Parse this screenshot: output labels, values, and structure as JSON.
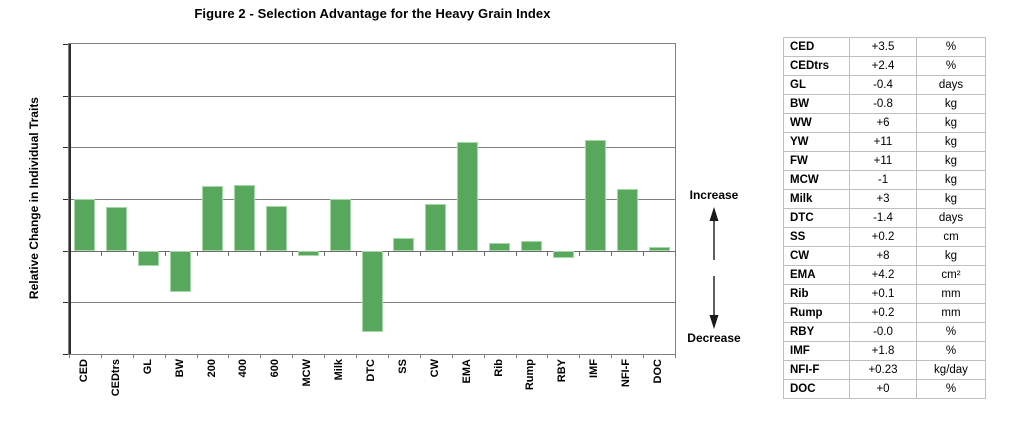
{
  "chart_data": {
    "type": "bar",
    "title": "Figure 2 - Selection Advantage for the Heavy Grain Index",
    "ylabel": "Relative Change in Individual Traits",
    "xlabel": "",
    "categories": [
      "CED",
      "CEDtrs",
      "GL",
      "BW",
      "200",
      "400",
      "600",
      "MCW",
      "Milk",
      "DTC",
      "SS",
      "CW",
      "EMA",
      "Rib",
      "Rump",
      "RBY",
      "IMF",
      "NFI-F",
      "DOC"
    ],
    "values": [
      1.0,
      0.85,
      -0.3,
      -0.8,
      1.25,
      1.28,
      0.87,
      -0.1,
      1.0,
      -1.58,
      0.24,
      0.9,
      2.1,
      0.14,
      0.18,
      -0.15,
      2.15,
      1.2,
      0.07
    ],
    "ylim": [
      -2,
      4
    ],
    "gridline_step": 1,
    "grid": true,
    "legend": "none",
    "y_tick_labels_shown": false
  },
  "annotation": {
    "increase_label": "Increase",
    "decrease_label": "Decrease"
  },
  "table": {
    "rows": [
      {
        "trait": "CED",
        "value": "+3.5",
        "unit": "%"
      },
      {
        "trait": "CEDtrs",
        "value": "+2.4",
        "unit": "%"
      },
      {
        "trait": "GL",
        "value": "-0.4",
        "unit": "days"
      },
      {
        "trait": "BW",
        "value": "-0.8",
        "unit": "kg"
      },
      {
        "trait": "WW",
        "value": "+6",
        "unit": "kg"
      },
      {
        "trait": "YW",
        "value": "+11",
        "unit": "kg"
      },
      {
        "trait": "FW",
        "value": "+11",
        "unit": "kg"
      },
      {
        "trait": "MCW",
        "value": "-1",
        "unit": "kg"
      },
      {
        "trait": "Milk",
        "value": "+3",
        "unit": "kg"
      },
      {
        "trait": "DTC",
        "value": "-1.4",
        "unit": "days"
      },
      {
        "trait": "SS",
        "value": "+0.2",
        "unit": "cm"
      },
      {
        "trait": "CW",
        "value": "+8",
        "unit": "kg"
      },
      {
        "trait": "EMA",
        "value": "+4.2",
        "unit": "cm²"
      },
      {
        "trait": "Rib",
        "value": "+0.1",
        "unit": "mm"
      },
      {
        "trait": "Rump",
        "value": "+0.2",
        "unit": "mm"
      },
      {
        "trait": "RBY",
        "value": "-0.0",
        "unit": "%"
      },
      {
        "trait": "IMF",
        "value": "+1.8",
        "unit": "%"
      },
      {
        "trait": "NFI-F",
        "value": "+0.23",
        "unit": "kg/day"
      },
      {
        "trait": "DOC",
        "value": "+0",
        "unit": "%"
      }
    ]
  },
  "colors": {
    "bar_fill": "#57a85c",
    "bar_border": "#a9d6a9",
    "gridline": "#808080",
    "zero_line": "#6e6e6e",
    "axis": "#2e2e2e",
    "table_border": "#bfbfbf",
    "arrow": "#1a1a1a",
    "text": "#000000"
  }
}
